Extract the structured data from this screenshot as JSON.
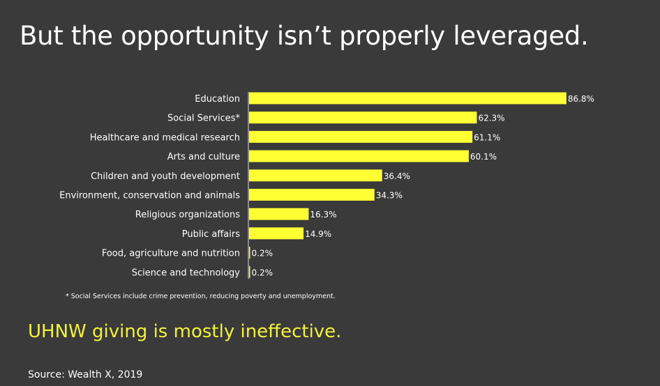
{
  "slide": {
    "title": "But the opportunity isn’t properly leveraged.",
    "footnote": "* Social Services include crime prevention, reducing poverty and unemployment.",
    "conclusion": "UHNW giving is mostly ineffective.",
    "source": "Source: Wealth X, 2019"
  },
  "colors": {
    "background": "#3a3a3a",
    "bar": "#ffff33",
    "axis": "#dcdcdc",
    "accent_text": "#f2f23a"
  },
  "chart_data": {
    "type": "bar",
    "orientation": "horizontal",
    "categories": [
      "Education",
      "Social Services*",
      "Healthcare and medical research",
      "Arts and culture",
      "Children and youth development",
      "Environment, conservation and animals",
      "Religious organizations",
      "Public affairs",
      "Food, agriculture and nutrition",
      "Science and technology"
    ],
    "values": [
      86.8,
      62.3,
      61.1,
      60.1,
      36.4,
      34.3,
      16.3,
      14.9,
      0.2,
      0.2
    ],
    "value_labels": [
      "86.8%",
      "62.3%",
      "61.1%",
      "60.1%",
      "36.4%",
      "34.3%",
      "16.3%",
      "14.9%",
      "0.2%",
      "0.2%"
    ],
    "unit": "%",
    "xlim": [
      0,
      100
    ],
    "grid": false,
    "legend": "none"
  }
}
